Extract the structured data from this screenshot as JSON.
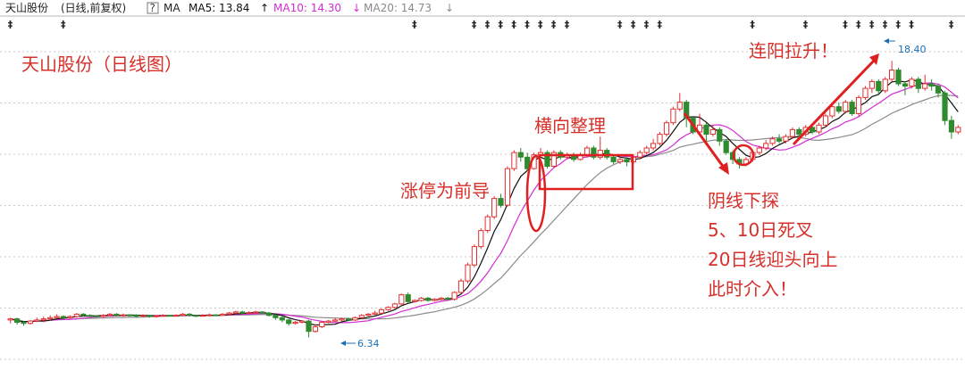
{
  "header": {
    "stock_name": "天山股份",
    "mode": "(日线,前复权)",
    "help_glyph": "?",
    "indicator": "MA",
    "ma5_label": "MA5: 13.84",
    "ma5_arrow": "↑",
    "ma10_label": "MA10: 14.30",
    "ma10_arrow": "↓",
    "ma20_label": "MA20: 14.73",
    "ma20_arrow": "↓"
  },
  "colors": {
    "up": "#e03030",
    "down": "#2e8b2e",
    "ma5": "#111111",
    "ma10": "#d42cd4",
    "ma20": "#8a8a8a",
    "annotation": "#d7302a",
    "grid": "#c9c9c9",
    "label_blue": "#1a6fb5"
  },
  "annotations": {
    "title": "天山股份（日线图）",
    "limit_up": "涨停为前导",
    "sideways": "横向整理",
    "rally": "连阳拉升！",
    "bear_probe": "阴线下探",
    "cross": "5、10日死叉",
    "ma20_up": "20日线迎头向上",
    "entry": "此时介入！",
    "high_label": "18.40",
    "low_label": "6.34"
  },
  "chart_data": {
    "type": "candlestick",
    "title": "天山股份（日线图）",
    "price_range": [
      5.5,
      19.5
    ],
    "low_mark": 6.34,
    "high_mark": 18.4,
    "series": [
      {
        "name": "MA5",
        "color": "#111111"
      },
      {
        "name": "MA10",
        "color": "#d42cd4"
      },
      {
        "name": "MA20",
        "color": "#8a8a8a"
      }
    ],
    "marker_days": [
      0,
      8,
      61,
      70,
      72,
      74,
      76,
      78,
      80,
      82,
      84,
      92,
      94,
      96,
      98,
      112,
      120,
      126,
      128,
      130,
      132,
      134,
      136,
      142
    ],
    "candles": [
      [
        7.1,
        7.15,
        6.95,
        7.2
      ],
      [
        7.15,
        7.0,
        6.9,
        7.2
      ],
      [
        7.0,
        6.95,
        6.85,
        7.05
      ],
      [
        6.95,
        7.05,
        6.9,
        7.1
      ],
      [
        7.05,
        7.1,
        7.0,
        7.2
      ],
      [
        7.1,
        7.15,
        7.0,
        7.25
      ],
      [
        7.15,
        7.2,
        7.05,
        7.3
      ],
      [
        7.2,
        7.25,
        7.15,
        7.35
      ],
      [
        7.25,
        7.2,
        7.1,
        7.3
      ],
      [
        7.2,
        7.25,
        7.15,
        7.3
      ],
      [
        7.25,
        7.35,
        7.2,
        7.4
      ],
      [
        7.35,
        7.3,
        7.25,
        7.4
      ],
      [
        7.3,
        7.28,
        7.2,
        7.35
      ],
      [
        7.28,
        7.25,
        7.2,
        7.3
      ],
      [
        7.25,
        7.3,
        7.2,
        7.35
      ],
      [
        7.3,
        7.35,
        7.25,
        7.4
      ],
      [
        7.35,
        7.3,
        7.25,
        7.4
      ],
      [
        7.3,
        7.32,
        7.25,
        7.38
      ],
      [
        7.32,
        7.3,
        7.25,
        7.35
      ],
      [
        7.3,
        7.28,
        7.2,
        7.35
      ],
      [
        7.28,
        7.3,
        7.22,
        7.35
      ],
      [
        7.3,
        7.25,
        7.2,
        7.32
      ],
      [
        7.25,
        7.28,
        7.2,
        7.3
      ],
      [
        7.28,
        7.3,
        7.25,
        7.35
      ],
      [
        7.3,
        7.28,
        7.25,
        7.32
      ],
      [
        7.28,
        7.3,
        7.25,
        7.35
      ],
      [
        7.3,
        7.35,
        7.25,
        7.4
      ],
      [
        7.35,
        7.3,
        7.25,
        7.4
      ],
      [
        7.3,
        7.28,
        7.22,
        7.33
      ],
      [
        7.28,
        7.3,
        7.25,
        7.35
      ],
      [
        7.3,
        7.32,
        7.25,
        7.38
      ],
      [
        7.32,
        7.3,
        7.28,
        7.35
      ],
      [
        7.3,
        7.35,
        7.28,
        7.4
      ],
      [
        7.35,
        7.4,
        7.3,
        7.45
      ],
      [
        7.4,
        7.45,
        7.35,
        7.5
      ],
      [
        7.45,
        7.4,
        7.35,
        7.5
      ],
      [
        7.4,
        7.42,
        7.35,
        7.48
      ],
      [
        7.42,
        7.45,
        7.38,
        7.5
      ],
      [
        7.45,
        7.4,
        7.35,
        7.48
      ],
      [
        7.4,
        7.3,
        7.25,
        7.45
      ],
      [
        7.3,
        7.2,
        7.1,
        7.35
      ],
      [
        7.2,
        7.1,
        7.0,
        7.25
      ],
      [
        7.1,
        6.95,
        6.85,
        7.15
      ],
      [
        6.95,
        7.0,
        6.9,
        7.05
      ],
      [
        7.0,
        7.05,
        6.95,
        7.1
      ],
      [
        7.05,
        6.6,
        6.34,
        7.1
      ],
      [
        6.6,
        6.8,
        6.55,
        6.9
      ],
      [
        6.8,
        7.0,
        6.75,
        7.05
      ],
      [
        7.0,
        7.05,
        6.95,
        7.1
      ],
      [
        7.05,
        7.1,
        7.0,
        7.2
      ],
      [
        7.1,
        7.15,
        7.05,
        7.2
      ],
      [
        7.15,
        7.1,
        7.05,
        7.2
      ],
      [
        7.1,
        7.2,
        7.05,
        7.25
      ],
      [
        7.2,
        7.3,
        7.15,
        7.35
      ],
      [
        7.3,
        7.35,
        7.25,
        7.4
      ],
      [
        7.35,
        7.4,
        7.3,
        7.5
      ],
      [
        7.4,
        7.55,
        7.35,
        7.6
      ],
      [
        7.55,
        7.65,
        7.5,
        7.7
      ],
      [
        7.65,
        7.8,
        7.6,
        7.85
      ],
      [
        7.8,
        8.2,
        7.75,
        8.25
      ],
      [
        8.2,
        7.9,
        7.85,
        8.3
      ],
      [
        7.9,
        7.95,
        7.85,
        8.0
      ],
      [
        7.95,
        8.05,
        7.9,
        8.1
      ],
      [
        8.05,
        7.95,
        7.9,
        8.1
      ],
      [
        7.95,
        8.0,
        7.9,
        8.05
      ],
      [
        8.0,
        8.05,
        7.95,
        8.1
      ],
      [
        8.05,
        8.0,
        7.95,
        8.1
      ],
      [
        8.0,
        8.3,
        7.95,
        8.35
      ],
      [
        8.3,
        8.8,
        8.25,
        8.9
      ],
      [
        8.8,
        9.5,
        8.7,
        9.6
      ],
      [
        9.5,
        10.3,
        9.4,
        10.4
      ],
      [
        10.3,
        11.0,
        10.2,
        11.1
      ],
      [
        11.0,
        11.6,
        10.9,
        11.7
      ],
      [
        11.6,
        12.4,
        11.5,
        12.5
      ],
      [
        12.4,
        12.1,
        12.0,
        12.6
      ],
      [
        12.1,
        13.7,
        12.05,
        13.8
      ],
      [
        13.7,
        14.4,
        13.6,
        14.5
      ],
      [
        14.4,
        14.2,
        14.0,
        14.6
      ],
      [
        14.2,
        13.7,
        13.6,
        14.4
      ],
      [
        13.7,
        14.3,
        13.65,
        14.4
      ],
      [
        14.3,
        14.4,
        14.2,
        14.6
      ],
      [
        14.4,
        13.8,
        13.7,
        14.5
      ],
      [
        13.8,
        14.4,
        13.75,
        14.5
      ],
      [
        14.4,
        14.2,
        14.1,
        14.5
      ],
      [
        14.2,
        14.3,
        14.1,
        14.4
      ],
      [
        14.3,
        14.1,
        14.0,
        14.4
      ],
      [
        14.1,
        14.3,
        14.05,
        14.4
      ],
      [
        14.3,
        14.6,
        14.2,
        14.7
      ],
      [
        14.6,
        14.2,
        14.1,
        14.7
      ],
      [
        14.2,
        14.5,
        14.1,
        15.1
      ],
      [
        14.5,
        14.2,
        14.1,
        14.6
      ],
      [
        14.2,
        14.0,
        13.9,
        14.3
      ],
      [
        14.0,
        14.1,
        13.9,
        14.2
      ],
      [
        14.1,
        14.0,
        13.8,
        14.2
      ],
      [
        14.0,
        14.2,
        13.9,
        14.3
      ],
      [
        14.2,
        14.4,
        14.1,
        14.5
      ],
      [
        14.4,
        14.6,
        14.3,
        14.7
      ],
      [
        14.6,
        14.8,
        14.5,
        15.0
      ],
      [
        14.8,
        15.2,
        14.7,
        15.3
      ],
      [
        15.2,
        15.7,
        15.1,
        15.8
      ],
      [
        15.7,
        16.3,
        15.6,
        16.4
      ],
      [
        16.3,
        16.6,
        16.2,
        17.0
      ],
      [
        16.6,
        15.9,
        15.5,
        16.7
      ],
      [
        15.9,
        15.3,
        15.2,
        16.0
      ],
      [
        15.3,
        15.6,
        15.2,
        16.1
      ],
      [
        15.6,
        15.2,
        14.8,
        15.7
      ],
      [
        15.2,
        15.4,
        15.1,
        15.6
      ],
      [
        15.4,
        14.9,
        14.7,
        15.5
      ],
      [
        14.9,
        14.4,
        14.3,
        15.0
      ],
      [
        14.4,
        14.1,
        13.9,
        14.5
      ],
      [
        14.1,
        13.9,
        13.7,
        14.2
      ],
      [
        13.9,
        14.1,
        13.8,
        14.2
      ],
      [
        14.1,
        14.4,
        14.0,
        14.5
      ],
      [
        14.4,
        14.6,
        14.3,
        14.7
      ],
      [
        14.6,
        14.8,
        14.5,
        14.95
      ],
      [
        14.8,
        15.0,
        14.7,
        15.1
      ],
      [
        15.0,
        14.9,
        14.8,
        15.2
      ],
      [
        14.9,
        15.1,
        14.8,
        15.2
      ],
      [
        15.1,
        15.4,
        15.0,
        15.5
      ],
      [
        15.4,
        15.2,
        15.1,
        15.5
      ],
      [
        15.2,
        15.5,
        15.1,
        15.6
      ],
      [
        15.5,
        15.3,
        15.2,
        15.6
      ],
      [
        15.3,
        15.6,
        15.2,
        15.7
      ],
      [
        15.6,
        16.0,
        15.5,
        16.1
      ],
      [
        16.0,
        16.4,
        15.9,
        16.5
      ],
      [
        16.4,
        16.2,
        16.1,
        16.6
      ],
      [
        16.2,
        16.6,
        16.1,
        16.7
      ],
      [
        16.6,
        16.1,
        16.0,
        16.7
      ],
      [
        16.1,
        16.8,
        16.0,
        16.9
      ],
      [
        16.8,
        17.2,
        16.7,
        17.3
      ],
      [
        17.2,
        17.5,
        17.0,
        17.6
      ],
      [
        17.5,
        17.1,
        16.9,
        17.6
      ],
      [
        17.1,
        17.6,
        17.0,
        17.7
      ],
      [
        17.6,
        18.0,
        17.5,
        18.4
      ],
      [
        18.0,
        17.4,
        17.3,
        18.1
      ],
      [
        17.4,
        17.3,
        16.9,
        17.5
      ],
      [
        17.3,
        17.6,
        17.2,
        17.7
      ],
      [
        17.6,
        17.2,
        17.0,
        17.7
      ],
      [
        17.2,
        17.4,
        17.1,
        17.8
      ],
      [
        17.4,
        17.3,
        17.1,
        17.6
      ],
      [
        17.3,
        17.0,
        16.8,
        17.4
      ],
      [
        17.0,
        15.8,
        15.6,
        17.1
      ],
      [
        15.8,
        15.3,
        15.0,
        16.0
      ],
      [
        15.3,
        15.5,
        15.2,
        15.6
      ]
    ]
  }
}
